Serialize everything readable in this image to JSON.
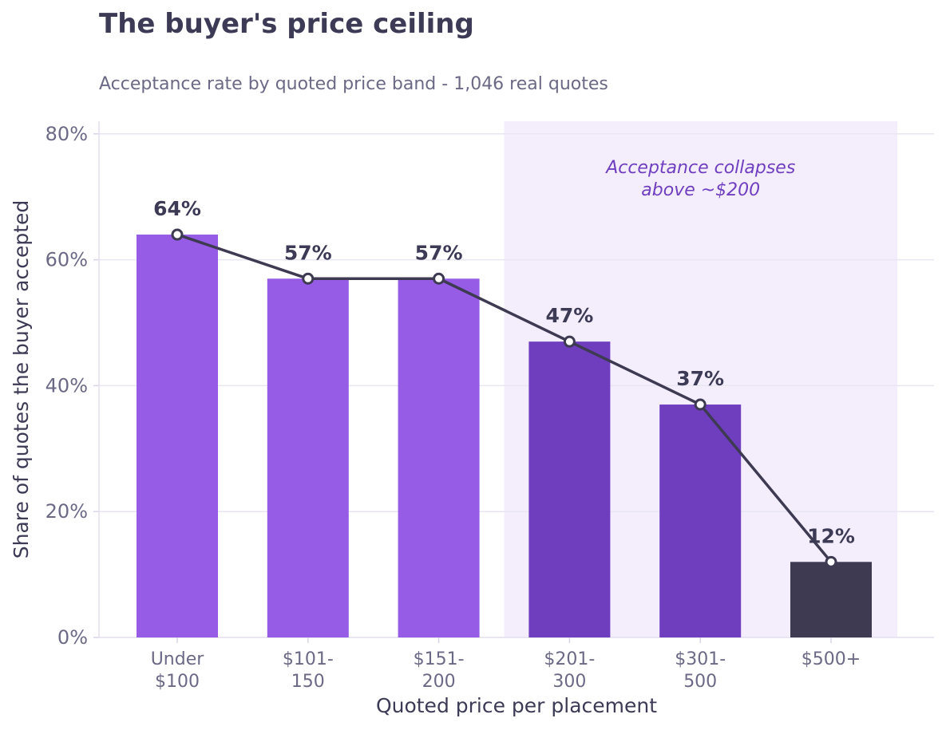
{
  "chart_data": {
    "type": "bar",
    "title": "The buyer's price ceiling",
    "subtitle": "Acceptance rate by quoted price band - 1,046 real quotes",
    "xlabel": "Quoted price per placement",
    "ylabel": "Share of quotes the buyer accepted",
    "categories": [
      [
        "Under",
        "$100"
      ],
      [
        "$101-",
        "150"
      ],
      [
        "$151-",
        "200"
      ],
      [
        "$201-",
        "300"
      ],
      [
        "$301-",
        "500"
      ],
      [
        "$500+"
      ]
    ],
    "values": [
      64,
      57,
      57,
      47,
      37,
      12
    ],
    "value_labels": [
      "64%",
      "57%",
      "57%",
      "47%",
      "37%",
      "12%"
    ],
    "bar_colors": [
      "#965ce6",
      "#965ce6",
      "#965ce6",
      "#6e3ebf",
      "#6e3ebf",
      "#3d3a52"
    ],
    "line_overlay": true,
    "line_color": "#3d3a52",
    "ylim": [
      0,
      82
    ],
    "yticks": [
      0,
      20,
      40,
      60,
      80
    ],
    "ytick_labels": [
      "0%",
      "20%",
      "40%",
      "60%",
      "80%"
    ],
    "grid": true,
    "highlight_region": {
      "from_category": 3,
      "to_category": 5,
      "color": "#f3edfc",
      "annotation": [
        "Acceptance collapses",
        "above ~$200"
      ]
    }
  }
}
